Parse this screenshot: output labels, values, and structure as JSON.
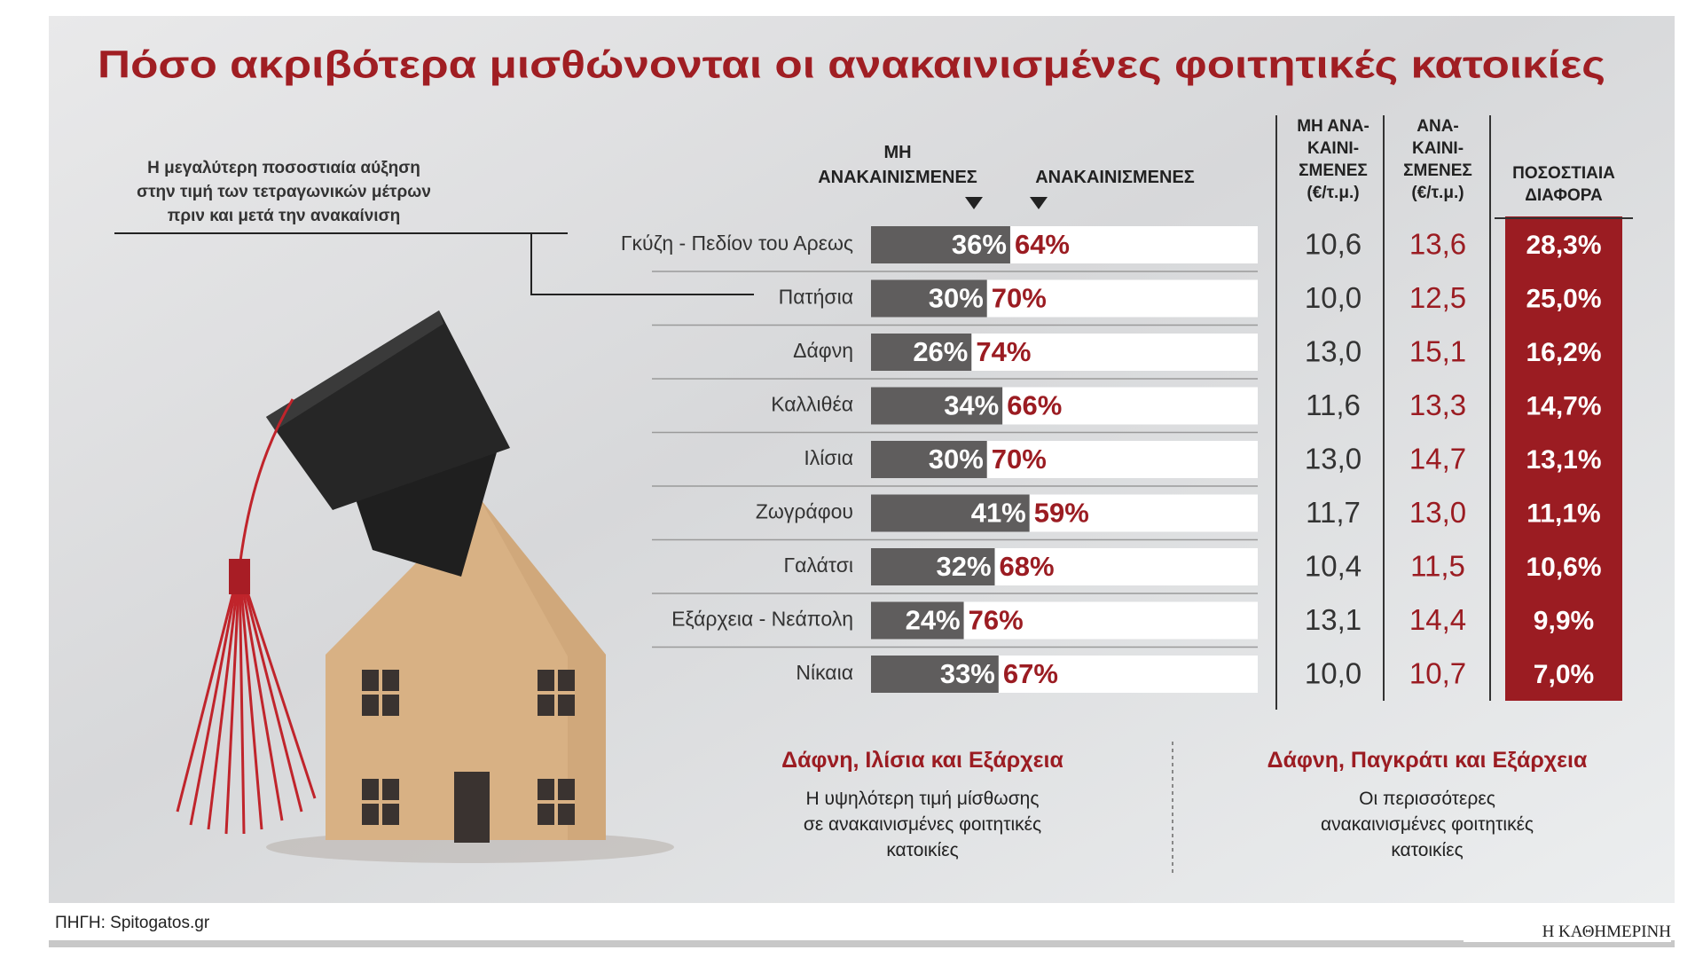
{
  "chart_data": {
    "type": "bar",
    "orientation": "horizontal",
    "stacked": true,
    "title": "Πόσο ακριβότερα μισθώνονται οι ανακαινισμένες φοιτητικές κατοικίες",
    "annotation": "Η μεγαλύτερη ποσοστιαία αύξηση\nστην τιμή των τετραγωνικών μέτρων\nπριν και μετά την ανακαίνιση",
    "categories": [
      "Γκύζη - Πεδίον του Αρεως",
      "Πατήσια",
      "Δάφνη",
      "Καλλιθέα",
      "Ιλίσια",
      "Ζωγράφου",
      "Γαλάτσι",
      "Εξάρχεια - Νεάπολη",
      "Νίκαια"
    ],
    "series": [
      {
        "name": "ΜΗ\nΑΝΑΚΑΙΝΙΣΜΕΝΕΣ",
        "color": "#5f5d5d",
        "values": [
          36,
          30,
          26,
          34,
          30,
          41,
          32,
          24,
          33
        ],
        "value_labels": [
          "36%",
          "30%",
          "26%",
          "34%",
          "30%",
          "41%",
          "32%",
          "24%",
          "33%"
        ]
      },
      {
        "name": "ΑΝΑΚΑΙΝΙΣΜΕΝΕΣ",
        "color": "#ffffff",
        "values": [
          64,
          70,
          74,
          66,
          70,
          59,
          68,
          76,
          67
        ],
        "value_labels": [
          "64%",
          "70%",
          "74%",
          "66%",
          "70%",
          "59%",
          "68%",
          "76%",
          "67%"
        ]
      }
    ],
    "xlim": [
      0,
      100
    ]
  },
  "table": {
    "columns": [
      {
        "header": "ΜΗ ΑΝΑ-\nΚΑΙΝΙ-\nΣΜΕΝΕΣ\n(€/τ.μ.)",
        "values": [
          10.6,
          10.0,
          13.0,
          11.6,
          13.0,
          11.7,
          10.4,
          13.1,
          10.0
        ],
        "value_labels": [
          "10,6",
          "10,0",
          "13,0",
          "11,6",
          "13,0",
          "11,7",
          "10,4",
          "13,1",
          "10,0"
        ]
      },
      {
        "header": "ΑΝΑ-\nΚΑΙΝΙ-\nΣΜΕΝΕΣ\n(€/τ.μ.)",
        "values": [
          13.6,
          12.5,
          15.1,
          13.3,
          14.7,
          13.0,
          11.5,
          14.4,
          10.7
        ],
        "value_labels": [
          "13,6",
          "12,5",
          "15,1",
          "13,3",
          "14,7",
          "13,0",
          "11,5",
          "14,4",
          "10,7"
        ]
      },
      {
        "header": "ΠΟΣΟΣΤΙΑΙΑ\nΔΙΑΦΟΡΑ",
        "values": [
          28.3,
          25.0,
          16.2,
          14.7,
          13.1,
          11.1,
          10.6,
          9.9,
          7.0
        ],
        "value_labels": [
          "28,3%",
          "25,0%",
          "16,2%",
          "14,7%",
          "13,1%",
          "11,1%",
          "10,6%",
          "9,9%",
          "7,0%"
        ],
        "highlight_color": "#9b1c22"
      }
    ]
  },
  "notes": [
    {
      "title": "Δάφνη, Ιλίσια και Εξάρχεια",
      "text": "Η υψηλότερη τιμή μίσθωσης\nσε ανακαινισμένες φοιτητικές\nκατοικίες"
    },
    {
      "title": "Δάφνη, Παγκράτι και Εξάρχεια",
      "text": "Οι περισσότερες\nανακαινισμένες φοιτητικές\nκατοικίες"
    }
  ],
  "source": "ΠΗΓΗ: Spitogatos.gr",
  "brand": "Η ΚΑΘΗΜΕΡΙΝΗ"
}
